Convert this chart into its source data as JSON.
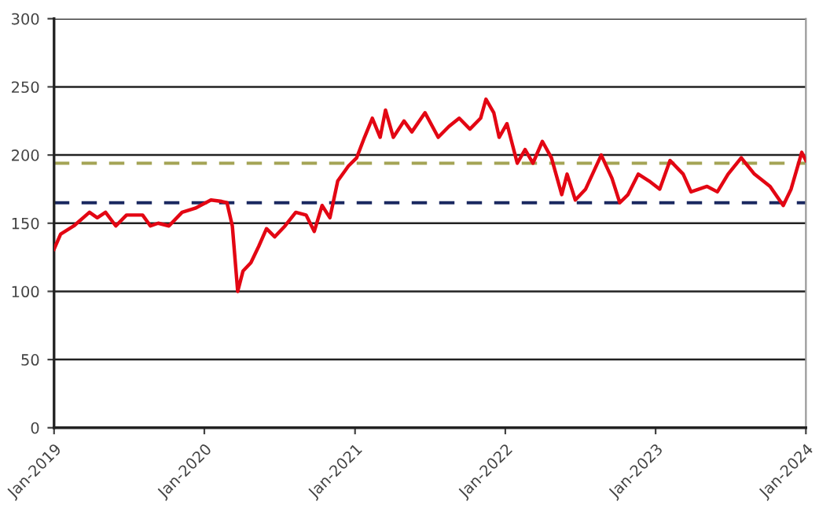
{
  "chart_data": {
    "type": "line",
    "grid": "y",
    "marker": "none",
    "line_style": "solid",
    "xlim": [
      "2019-01-01",
      "2024-01-01"
    ],
    "xticks": [
      {
        "value": "2019-01-01",
        "label": "Jan-2019"
      },
      {
        "value": "2020-01-01",
        "label": "Jan-2020"
      },
      {
        "value": "2021-01-01",
        "label": "Jan-2021"
      },
      {
        "value": "2022-01-01",
        "label": "Jan-2022"
      },
      {
        "value": "2023-01-01",
        "label": "Jan-2023"
      },
      {
        "value": "2024-01-01",
        "label": "Jan-2024"
      }
    ],
    "ylim": [
      0,
      300
    ],
    "yticks": [
      0,
      50,
      100,
      150,
      200,
      250,
      300
    ],
    "ref_lines": [
      {
        "axis": "y",
        "value": 194,
        "label": null,
        "color": "#a4a455",
        "line_style": "dashed"
      },
      {
        "axis": "y",
        "value": 165,
        "label": null,
        "color": "#1a2860",
        "line_style": "dashed"
      }
    ],
    "series": [
      {
        "color": "#e30613",
        "x": [
          "2019-01-01",
          "2019-01-17",
          "2019-02-18",
          "2019-03-28",
          "2019-04-16",
          "2019-05-06",
          "2019-05-31",
          "2019-06-26",
          "2019-08-04",
          "2019-08-23",
          "2019-09-11",
          "2019-10-07",
          "2019-11-08",
          "2019-12-10",
          "2020-01-17",
          "2020-02-12",
          "2020-02-25",
          "2020-03-09",
          "2020-03-22",
          "2020-04-04",
          "2020-04-23",
          "2020-05-12",
          "2020-05-31",
          "2020-06-20",
          "2020-07-15",
          "2020-08-10",
          "2020-09-04",
          "2020-09-24",
          "2020-10-13",
          "2020-11-01",
          "2020-11-20",
          "2020-12-16",
          "2021-01-05",
          "2021-01-24",
          "2021-02-12",
          "2021-03-03",
          "2021-03-16",
          "2021-04-04",
          "2021-04-30",
          "2021-05-19",
          "2021-06-20",
          "2021-07-22",
          "2021-08-17",
          "2021-09-11",
          "2021-10-07",
          "2021-11-02",
          "2021-11-15",
          "2021-12-04",
          "2021-12-17",
          "2022-01-05",
          "2022-01-30",
          "2022-02-18",
          "2022-03-09",
          "2022-04-01",
          "2022-04-23",
          "2022-05-18",
          "2022-05-31",
          "2022-06-20",
          "2022-07-15",
          "2022-08-22",
          "2022-09-17",
          "2022-10-06",
          "2022-10-26",
          "2022-11-20",
          "2022-12-16",
          "2023-01-11",
          "2023-02-05",
          "2023-03-09",
          "2023-03-28",
          "2023-05-06",
          "2023-05-31",
          "2023-06-26",
          "2023-07-28",
          "2023-08-29",
          "2023-10-06",
          "2023-11-07",
          "2023-11-26",
          "2023-12-22",
          "2024-01-01"
        ],
        "values": [
          131,
          142,
          148,
          158,
          154,
          158,
          148,
          156,
          156,
          148,
          150,
          148,
          158,
          161,
          167,
          166,
          165,
          148,
          100,
          115,
          121,
          133,
          146,
          140,
          148,
          158,
          156,
          144,
          163,
          154,
          181,
          192,
          198,
          213,
          227,
          213,
          233,
          213,
          225,
          217,
          231,
          213,
          221,
          227,
          219,
          227,
          241,
          231,
          213,
          223,
          194,
          204,
          194,
          210,
          198,
          171,
          186,
          167,
          175,
          200,
          183,
          165,
          171,
          186,
          181,
          175,
          196,
          186,
          173,
          177,
          173,
          186,
          198,
          186,
          177,
          163,
          175,
          202,
          196
        ]
      }
    ]
  }
}
